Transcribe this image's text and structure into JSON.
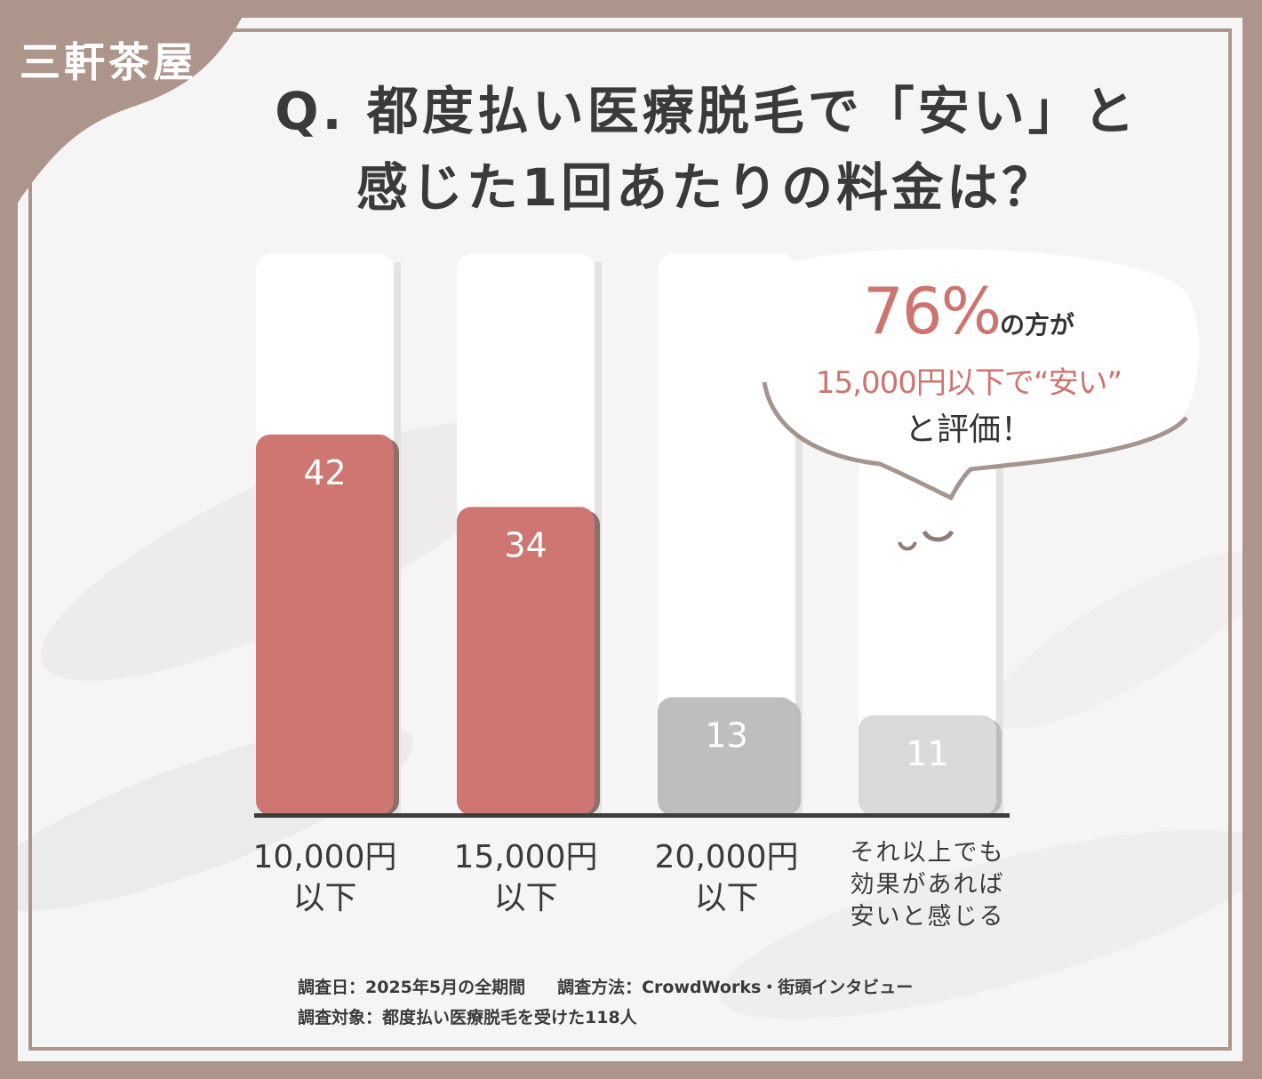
{
  "brand": "三軒茶屋",
  "title": {
    "line1": "Q. 都度払い医療脱毛で「安い」と",
    "line2": "感じた1回あたりの料金は？"
  },
  "callout": {
    "percent": "76%",
    "text1": "の方が",
    "text2": "15,000円以下で“安い”",
    "text3": "と評価！"
  },
  "chart_data": {
    "type": "bar",
    "categories": [
      [
        "10,000円",
        "以下"
      ],
      [
        "15,000円",
        "以下"
      ],
      [
        "20,000円",
        "以下"
      ],
      [
        "それ以上でも",
        "効果があれば",
        "安いと感じる"
      ]
    ],
    "values": [
      42,
      34,
      13,
      11
    ],
    "value_labels": [
      "42",
      "34",
      "13",
      "11"
    ],
    "ylim": [
      0,
      62
    ],
    "colors": [
      "#cd7672",
      "#cd7672",
      "#bfbebe",
      "#d9d9d9"
    ],
    "highlight_categories": [
      0,
      1
    ]
  },
  "footer": {
    "survey_date": "調査日：2025年5月の全期間",
    "survey_method": "調査方法：CrowdWorks・街頭インタビュー",
    "survey_target": "調査対象：都度払い医療脱毛を受けた118人"
  },
  "colors": {
    "accent": "#cd7672",
    "frame": "#ad958c",
    "text": "#3a3a3a"
  }
}
